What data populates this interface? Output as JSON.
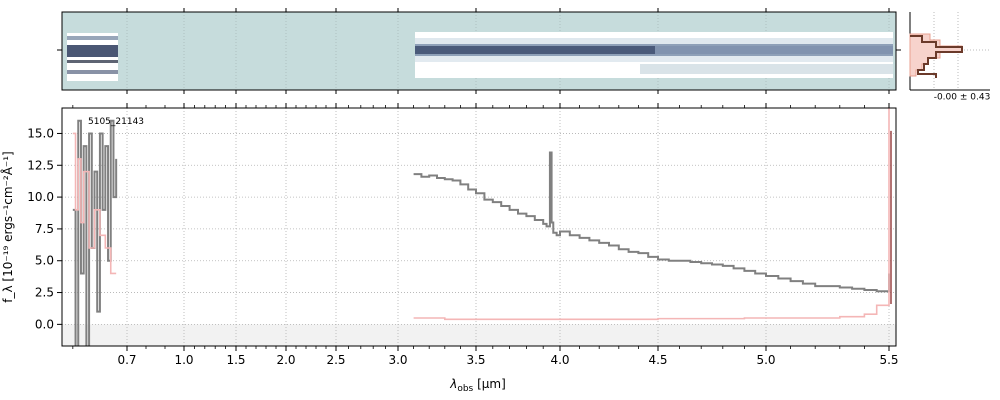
{
  "chart_data": {
    "type": "line",
    "object_id": "5105_21143",
    "xlabel_main": "λ",
    "xlabel_sub": "obs",
    "xlabel_unit": "[μm]",
    "ylabel": "f_λ [10⁻¹⁹ ergs⁻¹cm⁻²Å⁻¹]",
    "x_ticks": [
      "0.7",
      "1.0",
      "1.5",
      "2.0",
      "2.5",
      "3.0",
      "3.5",
      "4.0",
      "4.5",
      "5.0",
      "5.5"
    ],
    "y_ticks": [
      "0.0",
      "2.5",
      "5.0",
      "7.5",
      "10.0",
      "12.5",
      "15.0"
    ],
    "ylim": [
      -1.7,
      17
    ],
    "x_scale": "piecewise (compressed below 3 μm)",
    "grid": true,
    "residual_hist_label": "-0.00 ± 0.43",
    "colors": {
      "flux": "#808080",
      "error": "#f4b6b6",
      "panel2d_bg": "#c6dcdc",
      "hist_fill": "#f7d3cc",
      "hist_line": "#6b3a2a",
      "model": "#a05050"
    },
    "series": [
      {
        "role": "flux",
        "segments": [
          {
            "x": [
              0.6,
              0.605,
              0.61,
              0.615,
              0.62,
              0.625,
              0.63,
              0.635,
              0.64,
              0.645,
              0.65,
              0.655,
              0.66,
              0.665,
              0.67,
              0.675,
              0.68
            ],
            "y": [
              9,
              -2,
              16,
              4,
              14,
              -2,
              15,
              6,
              12,
              1,
              15,
              9,
              14,
              5,
              16,
              10,
              13
            ]
          },
          {
            "x": [
              3.1,
              3.15,
              3.2,
              3.25,
              3.3,
              3.35,
              3.4,
              3.45,
              3.5,
              3.55,
              3.6,
              3.65,
              3.7,
              3.75,
              3.8,
              3.85,
              3.9,
              3.92,
              3.94,
              3.95,
              3.96,
              3.98,
              4.0,
              4.05,
              4.1,
              4.15,
              4.2,
              4.25,
              4.3,
              4.35,
              4.4,
              4.45,
              4.5,
              4.55,
              4.6,
              4.65,
              4.7,
              4.75,
              4.8,
              4.85,
              4.9,
              4.95,
              5.0,
              5.05,
              5.1,
              5.15,
              5.2,
              5.25,
              5.3,
              5.35,
              5.4,
              5.45,
              5.5
            ],
            "y": [
              11.8,
              11.6,
              11.7,
              11.5,
              11.4,
              11.3,
              11.0,
              10.6,
              10.3,
              9.8,
              9.6,
              9.3,
              9.0,
              8.7,
              8.5,
              8.2,
              7.9,
              7.7,
              13.5,
              8.0,
              7.2,
              7.0,
              7.3,
              7.0,
              6.8,
              6.6,
              6.4,
              6.2,
              5.9,
              5.7,
              5.6,
              5.3,
              5.1,
              5.0,
              5.0,
              4.9,
              4.8,
              4.7,
              4.6,
              4.4,
              4.2,
              4.0,
              3.8,
              3.6,
              3.4,
              3.2,
              3.0,
              3.0,
              2.9,
              2.8,
              2.7,
              2.6,
              4.0
            ]
          }
        ]
      },
      {
        "role": "error",
        "segments": [
          {
            "x": [
              0.6,
              0.605,
              0.61,
              0.615,
              0.62,
              0.63,
              0.64,
              0.65,
              0.66,
              0.67,
              0.68
            ],
            "y": [
              15,
              9,
              13,
              8,
              12,
              6,
              9,
              7,
              6,
              4,
              4
            ]
          },
          {
            "x": [
              3.1,
              3.3,
              3.5,
              3.7,
              3.9,
              4.1,
              4.3,
              4.5,
              4.7,
              4.9,
              5.1,
              5.3,
              5.4,
              5.45,
              5.5
            ],
            "y": [
              0.5,
              0.4,
              0.4,
              0.4,
              0.4,
              0.4,
              0.4,
              0.45,
              0.45,
              0.5,
              0.5,
              0.6,
              0.8,
              1.5,
              17
            ]
          }
        ]
      }
    ]
  }
}
